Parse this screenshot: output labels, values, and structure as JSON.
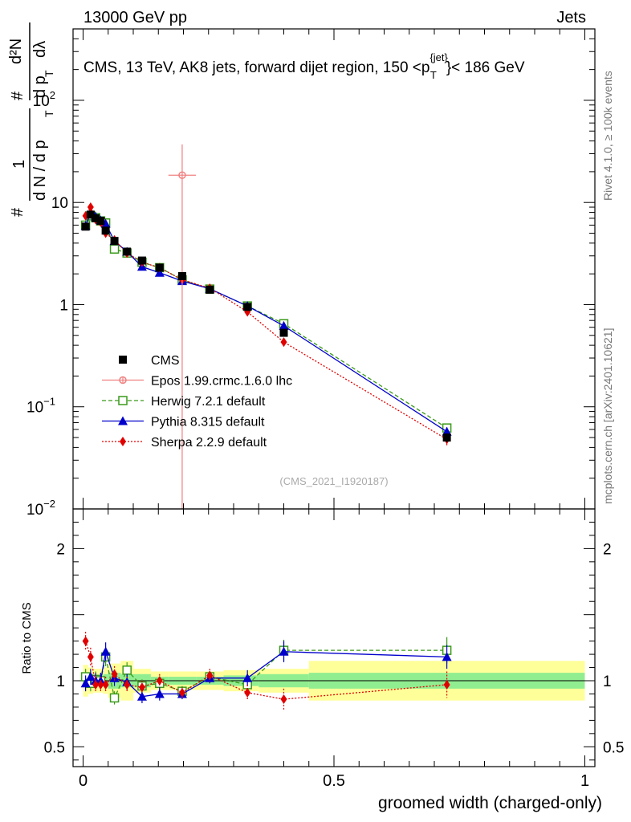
{
  "header": {
    "left": "13000 GeV pp",
    "right": "Jets",
    "title_main": "CMS, 13 TeV, AK8 jets, forward dijet region, 150 <p",
    "title_sup": "{jet}",
    "title_sub": "T",
    "title_end": "}< 186 GeV"
  },
  "side": {
    "rivet": "Rivet 4.1.0, ≥ 100k events",
    "mcplots": "mcplots.cern.ch [arXiv:2401.10621]"
  },
  "watermark": "(CMS_2021_I1920187)",
  "ylabel": {
    "hash1": "#",
    "one": "1",
    "dN": "d N / d p",
    "T1": "T",
    "hash2": "#",
    "dp": "d p",
    "T2": "T",
    "dlam": "dλ",
    "d2N": "d²N"
  },
  "ratio_ylabel": "Ratio to CMS",
  "xlabel": "groomed width (charged-only)",
  "colors": {
    "cms": "#000000",
    "epos": "#f08080",
    "herwig": "#3a9a1a",
    "pythia": "#0000cc",
    "sherpa": "#e00000",
    "band_inner": "#90ee90",
    "band_outer": "#ffff99"
  },
  "chart_data": {
    "type": "scatter",
    "main_yscale": "log",
    "main_ylim": [
      0.01,
      500
    ],
    "ratio_ylim": [
      0.35,
      2.3
    ],
    "xlim": [
      -0.02,
      1.02
    ],
    "x_ticks": [
      {
        "v": 0,
        "label": "0"
      },
      {
        "v": 0.5,
        "label": "0.5"
      },
      {
        "v": 1,
        "label": "1"
      }
    ],
    "y_ticks": [
      {
        "v": 0.01,
        "base": "10",
        "exp": "−2"
      },
      {
        "v": 0.1,
        "base": "10",
        "exp": "−1"
      },
      {
        "v": 1,
        "base": "1",
        "exp": ""
      },
      {
        "v": 10,
        "base": "10",
        "exp": ""
      },
      {
        "v": 100,
        "base": "10",
        "exp": "2"
      }
    ],
    "ratio_ticks": [
      {
        "v": 0.5,
        "label": "0.5"
      },
      {
        "v": 1,
        "label": "1"
      },
      {
        "v": 2,
        "label": "2"
      }
    ],
    "bins": [
      {
        "lo": 0.0,
        "hi": 0.01
      },
      {
        "lo": 0.01,
        "hi": 0.02
      },
      {
        "lo": 0.02,
        "hi": 0.03
      },
      {
        "lo": 0.03,
        "hi": 0.04
      },
      {
        "lo": 0.04,
        "hi": 0.05
      },
      {
        "lo": 0.05,
        "hi": 0.075
      },
      {
        "lo": 0.075,
        "hi": 0.1
      },
      {
        "lo": 0.1,
        "hi": 0.135
      },
      {
        "lo": 0.135,
        "hi": 0.17
      },
      {
        "lo": 0.17,
        "hi": 0.225
      },
      {
        "lo": 0.225,
        "hi": 0.28
      },
      {
        "lo": 0.28,
        "hi": 0.35
      },
      {
        "lo": 0.35,
        "hi": 0.45
      },
      {
        "lo": 0.45,
        "hi": 1.0
      }
    ],
    "band_inner": [
      0.05,
      0.05,
      0.04,
      0.04,
      0.05,
      0.06,
      0.05,
      0.05,
      0.03,
      0.03,
      0.03,
      0.04,
      0.05,
      0.06
    ],
    "band_outer": [
      0.12,
      0.1,
      0.09,
      0.09,
      0.1,
      0.13,
      0.15,
      0.09,
      0.07,
      0.07,
      0.07,
      0.08,
      0.09,
      0.15
    ],
    "legend": [
      "CMS",
      "Epos 1.99.crmc.1.6.0 lhc",
      "Herwig 7.2.1 default",
      "Pythia 8.315 default",
      "Sherpa 2.2.9 default"
    ],
    "series": [
      {
        "name": "CMS",
        "key": "cms",
        "marker": "square_filled",
        "line": "none",
        "points": [
          {
            "x": 0.005,
            "y": 5.8,
            "yerr": 0.25,
            "r": 1.0,
            "rerr": 0
          },
          {
            "x": 0.015,
            "y": 7.6,
            "yerr": 0.3,
            "r": 1.0,
            "rerr": 0
          },
          {
            "x": 0.025,
            "y": 7.0,
            "yerr": 0.3,
            "r": 1.0,
            "rerr": 0
          },
          {
            "x": 0.035,
            "y": 6.6,
            "yerr": 0.3,
            "r": 1.0,
            "rerr": 0
          },
          {
            "x": 0.045,
            "y": 5.3,
            "yerr": 0.25,
            "r": 1.0,
            "rerr": 0
          },
          {
            "x": 0.0625,
            "y": 4.2,
            "yerr": 0.2,
            "r": 1.0,
            "rerr": 0
          },
          {
            "x": 0.0875,
            "y": 3.3,
            "yerr": 0.15,
            "r": 1.0,
            "rerr": 0
          },
          {
            "x": 0.1175,
            "y": 2.7,
            "yerr": 0.12,
            "r": 1.0,
            "rerr": 0
          },
          {
            "x": 0.1525,
            "y": 2.3,
            "yerr": 0.1,
            "r": 1.0,
            "rerr": 0
          },
          {
            "x": 0.1975,
            "y": 1.9,
            "yerr": 0.08,
            "r": 1.0,
            "rerr": 0
          },
          {
            "x": 0.2525,
            "y": 1.4,
            "yerr": 0.06,
            "r": 1.0,
            "rerr": 0
          },
          {
            "x": 0.3275,
            "y": 0.95,
            "yerr": 0.05,
            "r": 1.0,
            "rerr": 0
          },
          {
            "x": 0.4,
            "y": 0.53,
            "yerr": 0.04,
            "r": 1.0,
            "rerr": 0
          },
          {
            "x": 0.725,
            "y": 0.05,
            "yerr": 0.005,
            "r": 1.0,
            "rerr": 0
          }
        ]
      },
      {
        "name": "Epos 1.99.crmc.1.6.0 lhc",
        "key": "epos",
        "marker": "cross_open",
        "line": "solid",
        "points": [
          {
            "x": 0.1975,
            "y": 18.5,
            "yerr": 18.5,
            "xerr": 0.0275,
            "r": null,
            "rerr": 0
          }
        ]
      },
      {
        "name": "Herwig 7.2.1 default",
        "key": "herwig",
        "marker": "square_open",
        "line": "dashed",
        "points": [
          {
            "x": 0.005,
            "y": 6.0,
            "yerr": 0.4,
            "r": 1.03,
            "rerr": 0.06
          },
          {
            "x": 0.015,
            "y": 7.4,
            "yerr": 0.4,
            "r": 0.98,
            "rerr": 0.06
          },
          {
            "x": 0.025,
            "y": 7.1,
            "yerr": 0.4,
            "r": 1.01,
            "rerr": 0.06
          },
          {
            "x": 0.035,
            "y": 6.6,
            "yerr": 0.4,
            "r": 1.0,
            "rerr": 0.06
          },
          {
            "x": 0.045,
            "y": 6.3,
            "yerr": 0.35,
            "r": 1.18,
            "rerr": 0.07
          },
          {
            "x": 0.0625,
            "y": 3.5,
            "yerr": 0.2,
            "r": 0.87,
            "rerr": 0.05
          },
          {
            "x": 0.0875,
            "y": 3.2,
            "yerr": 0.18,
            "r": 1.08,
            "rerr": 0.06
          },
          {
            "x": 0.1175,
            "y": 2.6,
            "yerr": 0.12,
            "r": 0.96,
            "rerr": 0.05
          },
          {
            "x": 0.1525,
            "y": 2.3,
            "yerr": 0.1,
            "r": 0.98,
            "rerr": 0.05
          },
          {
            "x": 0.1975,
            "y": 1.75,
            "yerr": 0.08,
            "r": 0.92,
            "rerr": 0.04
          },
          {
            "x": 0.2525,
            "y": 1.42,
            "yerr": 0.06,
            "r": 1.03,
            "rerr": 0.04
          },
          {
            "x": 0.3275,
            "y": 0.97,
            "yerr": 0.05,
            "r": 0.97,
            "rerr": 0.05
          },
          {
            "x": 0.4,
            "y": 0.65,
            "yerr": 0.04,
            "r": 1.23,
            "rerr": 0.08
          },
          {
            "x": 0.725,
            "y": 0.062,
            "yerr": 0.006,
            "r": 1.23,
            "rerr": 0.1
          }
        ]
      },
      {
        "name": "Pythia 8.315 default",
        "key": "pythia",
        "marker": "triangle_filled",
        "line": "solid",
        "points": [
          {
            "x": 0.005,
            "y": 5.9,
            "yerr": 0.3,
            "r": 0.98,
            "rerr": 0.06
          },
          {
            "x": 0.015,
            "y": 7.9,
            "yerr": 0.4,
            "r": 1.03,
            "rerr": 0.06
          },
          {
            "x": 0.025,
            "y": 7.3,
            "yerr": 0.35,
            "r": 1.0,
            "rerr": 0.06
          },
          {
            "x": 0.035,
            "y": 6.7,
            "yerr": 0.35,
            "r": 1.0,
            "rerr": 0.06
          },
          {
            "x": 0.045,
            "y": 6.2,
            "yerr": 0.3,
            "r": 1.22,
            "rerr": 0.07
          },
          {
            "x": 0.0625,
            "y": 4.2,
            "yerr": 0.2,
            "r": 1.02,
            "rerr": 0.06
          },
          {
            "x": 0.0875,
            "y": 3.3,
            "yerr": 0.15,
            "r": 0.99,
            "rerr": 0.06
          },
          {
            "x": 0.1175,
            "y": 2.35,
            "yerr": 0.12,
            "r": 0.88,
            "rerr": 0.05
          },
          {
            "x": 0.1525,
            "y": 2.05,
            "yerr": 0.1,
            "r": 0.9,
            "rerr": 0.05
          },
          {
            "x": 0.1975,
            "y": 1.7,
            "yerr": 0.08,
            "r": 0.9,
            "rerr": 0.04
          },
          {
            "x": 0.2525,
            "y": 1.43,
            "yerr": 0.06,
            "r": 1.02,
            "rerr": 0.04
          },
          {
            "x": 0.3275,
            "y": 0.97,
            "yerr": 0.05,
            "r": 1.02,
            "rerr": 0.06
          },
          {
            "x": 0.4,
            "y": 0.62,
            "yerr": 0.04,
            "r": 1.22,
            "rerr": 0.08
          },
          {
            "x": 0.725,
            "y": 0.057,
            "yerr": 0.006,
            "r": 1.18,
            "rerr": 0.09
          }
        ]
      },
      {
        "name": "Sherpa 2.2.9 default",
        "key": "sherpa",
        "marker": "diamond_filled",
        "line": "dotted",
        "points": [
          {
            "x": 0.005,
            "y": 7.4,
            "yerr": 0.35,
            "r": 1.3,
            "rerr": 0.07
          },
          {
            "x": 0.015,
            "y": 9.0,
            "yerr": 0.45,
            "r": 1.18,
            "rerr": 0.07
          },
          {
            "x": 0.025,
            "y": 6.8,
            "yerr": 0.35,
            "r": 0.97,
            "rerr": 0.06
          },
          {
            "x": 0.035,
            "y": 6.4,
            "yerr": 0.35,
            "r": 0.97,
            "rerr": 0.06
          },
          {
            "x": 0.045,
            "y": 5.0,
            "yerr": 0.25,
            "r": 0.97,
            "rerr": 0.06
          },
          {
            "x": 0.0625,
            "y": 4.3,
            "yerr": 0.2,
            "r": 1.05,
            "rerr": 0.06
          },
          {
            "x": 0.0875,
            "y": 3.2,
            "yerr": 0.15,
            "r": 0.97,
            "rerr": 0.06
          },
          {
            "x": 0.1175,
            "y": 2.6,
            "yerr": 0.12,
            "r": 0.95,
            "rerr": 0.05
          },
          {
            "x": 0.1525,
            "y": 2.3,
            "yerr": 0.1,
            "r": 1.0,
            "rerr": 0.05
          },
          {
            "x": 0.1975,
            "y": 1.75,
            "yerr": 0.08,
            "r": 0.91,
            "rerr": 0.04
          },
          {
            "x": 0.2525,
            "y": 1.45,
            "yerr": 0.06,
            "r": 1.04,
            "rerr": 0.05
          },
          {
            "x": 0.3275,
            "y": 0.85,
            "yerr": 0.05,
            "r": 0.91,
            "rerr": 0.06
          },
          {
            "x": 0.4,
            "y": 0.43,
            "yerr": 0.04,
            "r": 0.86,
            "rerr": 0.08
          },
          {
            "x": 0.725,
            "y": 0.048,
            "yerr": 0.006,
            "r": 0.97,
            "rerr": 0.1
          }
        ]
      }
    ]
  }
}
